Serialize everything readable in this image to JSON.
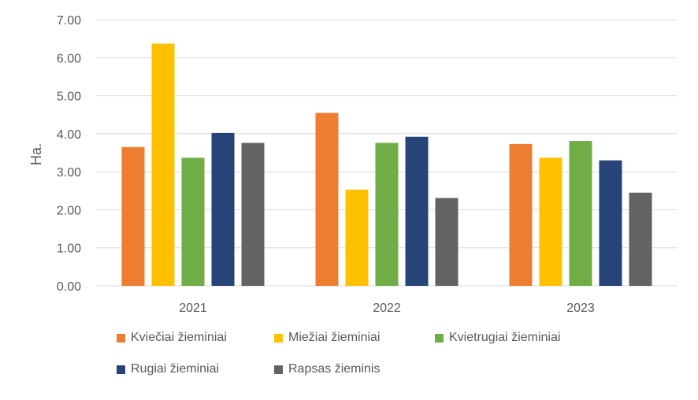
{
  "chart_data": {
    "type": "bar",
    "categories": [
      "2021",
      "2022",
      "2023"
    ],
    "ylabel": "Ha.",
    "ylim": [
      0,
      7
    ],
    "yticks": [
      "0.00",
      "1.00",
      "2.00",
      "3.00",
      "4.00",
      "5.00",
      "6.00",
      "7.00"
    ],
    "grid": true,
    "legend_position": "bottom",
    "series": [
      {
        "name": "Kviečiai žieminiai",
        "color": "#ED7D31",
        "values": [
          3.65,
          4.55,
          3.73
        ]
      },
      {
        "name": "Miežiai žieminiai",
        "color": "#FFC000",
        "values": [
          6.37,
          2.53,
          3.37
        ]
      },
      {
        "name": "Kvietrugiai žieminiai",
        "color": "#70AD47",
        "values": [
          3.37,
          3.76,
          3.81
        ]
      },
      {
        "name": "Rugiai žieminiai",
        "color": "#264478",
        "values": [
          4.02,
          3.92,
          3.3
        ]
      },
      {
        "name": "Rapsas žieminis",
        "color": "#636363",
        "values": [
          3.76,
          2.31,
          2.45
        ]
      }
    ]
  }
}
